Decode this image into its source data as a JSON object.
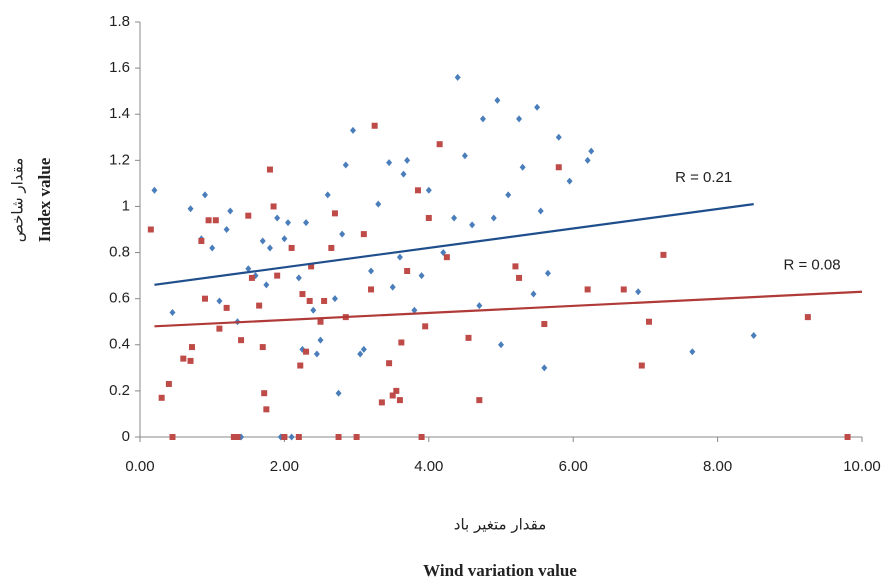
{
  "chart_data": {
    "type": "scatter",
    "y_label_fa": "مقدار شاخص",
    "y_label_en": "Index value",
    "x_label_fa": "مقدار متغير باد",
    "x_label_en": "Wind variation value",
    "xlim": [
      0,
      10
    ],
    "xticks": [
      {
        "value": 0,
        "label": "0.00"
      },
      {
        "value": 2,
        "label": "2.00"
      },
      {
        "value": 4,
        "label": "4.00"
      },
      {
        "value": 6,
        "label": "6.00"
      },
      {
        "value": 8,
        "label": "8.00"
      },
      {
        "value": 10,
        "label": "10.00"
      }
    ],
    "ylim": [
      0,
      1.8
    ],
    "yticks": [
      0,
      0.2,
      0.4,
      0.6,
      0.8,
      1,
      1.2,
      1.4,
      1.6,
      1.8
    ],
    "grid": false,
    "series": [
      {
        "color": "#4a7ebb",
        "marker": "diamond",
        "x": [
          0.2,
          0.45,
          0.7,
          0.85,
          0.9,
          1.0,
          1.1,
          1.2,
          1.25,
          1.35,
          1.4,
          1.5,
          1.6,
          1.7,
          1.75,
          1.8,
          1.9,
          2.0,
          2.05,
          2.1,
          2.2,
          2.25,
          2.3,
          2.4,
          2.45,
          2.5,
          2.6,
          2.7,
          2.75,
          2.8,
          2.85,
          2.95,
          3.1,
          3.2,
          3.3,
          3.45,
          3.5,
          3.6,
          3.65,
          3.7,
          3.8,
          3.9,
          4.0,
          4.2,
          4.35,
          4.4,
          4.5,
          4.6,
          4.75,
          4.9,
          4.95,
          5.0,
          5.1,
          5.25,
          5.3,
          5.45,
          5.5,
          5.55,
          5.6,
          5.65,
          5.8,
          5.95,
          6.2,
          6.25,
          6.9,
          7.65,
          8.5,
          1.95,
          3.05,
          4.7
        ],
        "values": [
          1.07,
          0.54,
          0.99,
          0.86,
          1.05,
          0.82,
          0.59,
          0.9,
          0.98,
          0.5,
          0,
          0.73,
          0.7,
          0.85,
          0.66,
          0.82,
          0.95,
          0.86,
          0.93,
          0,
          0.69,
          0.38,
          0.93,
          0.55,
          0.36,
          0.42,
          1.05,
          0.6,
          0.19,
          0.88,
          1.18,
          1.33,
          0.38,
          0.72,
          1.01,
          1.19,
          0.65,
          0.78,
          1.14,
          1.2,
          0.55,
          0.7,
          1.07,
          0.8,
          0.95,
          1.56,
          1.22,
          0.92,
          1.38,
          0.95,
          1.46,
          0.4,
          1.05,
          1.38,
          1.17,
          0.62,
          1.43,
          0.98,
          0.3,
          0.71,
          1.3,
          1.11,
          1.2,
          1.24,
          0.63,
          0.37,
          0.44,
          0,
          0.36,
          0.57
        ]
      },
      {
        "color": "#be4b48",
        "marker": "square",
        "x": [
          0.15,
          0.3,
          0.4,
          0.45,
          0.6,
          0.7,
          0.72,
          0.85,
          0.9,
          0.95,
          1.05,
          1.1,
          1.2,
          1.3,
          1.35,
          1.4,
          1.5,
          1.55,
          1.65,
          1.7,
          1.72,
          1.75,
          1.8,
          1.85,
          1.9,
          2.0,
          2.1,
          2.2,
          2.22,
          2.25,
          2.3,
          2.35,
          2.5,
          2.55,
          2.65,
          2.7,
          2.75,
          2.85,
          3.0,
          3.25,
          3.35,
          3.45,
          3.5,
          3.55,
          3.6,
          3.7,
          3.85,
          3.9,
          3.95,
          4.0,
          4.15,
          4.25,
          4.55,
          4.7,
          5.2,
          5.25,
          5.6,
          5.8,
          6.2,
          6.7,
          6.95,
          7.05,
          7.25,
          9.25,
          9.8,
          3.62,
          3.1,
          3.2,
          2.37
        ],
        "values": [
          0.9,
          0.17,
          0.23,
          0,
          0.34,
          0.33,
          0.39,
          0.85,
          0.6,
          0.94,
          0.94,
          0.47,
          0.56,
          0,
          0,
          0.42,
          0.96,
          0.69,
          0.57,
          0.39,
          0.19,
          0.12,
          1.16,
          1.0,
          0.7,
          0,
          0.82,
          0,
          0.31,
          0.62,
          0.37,
          0.59,
          0.5,
          0.59,
          0.82,
          0.97,
          0,
          0.52,
          0,
          1.35,
          0.15,
          0.32,
          0.18,
          0.2,
          0.16,
          0.72,
          1.07,
          0,
          0.48,
          0.95,
          1.27,
          0.78,
          0.43,
          0.16,
          0.74,
          0.69,
          0.49,
          1.17,
          0.64,
          0.64,
          0.31,
          0.5,
          0.79,
          0.52,
          0,
          0.41,
          0.88,
          0.64,
          0.74
        ]
      }
    ],
    "trendlines": [
      {
        "color": "#1f4e8c",
        "label": "R = 0.21",
        "x": [
          0.2,
          8.5
        ],
        "y": [
          0.66,
          1.01
        ]
      },
      {
        "color": "#b03a37",
        "label": "R = 0.08",
        "x": [
          0.2,
          10
        ],
        "y": [
          0.48,
          0.63
        ]
      }
    ]
  }
}
